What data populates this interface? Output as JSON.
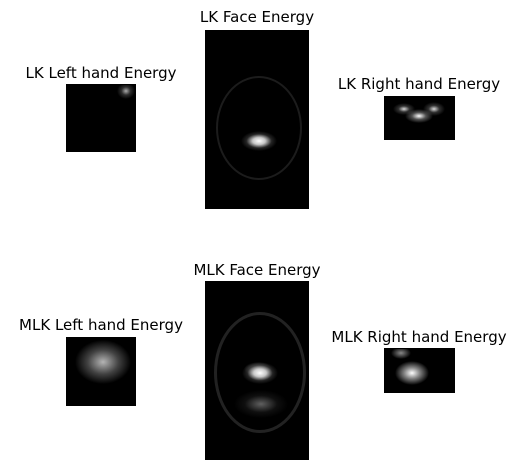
{
  "figure": {
    "panels": [
      {
        "id": "lk-left-hand",
        "title": "LK Left hand Energy"
      },
      {
        "id": "lk-face",
        "title": "LK Face Energy"
      },
      {
        "id": "lk-right-hand",
        "title": "LK Right hand Energy"
      },
      {
        "id": "mlk-left-hand",
        "title": "MLK Left hand Energy"
      },
      {
        "id": "mlk-face",
        "title": "MLK Face Energy"
      },
      {
        "id": "mlk-right-hand",
        "title": "MLK Right hand Energy"
      }
    ],
    "colormap": "grayscale",
    "axes_visible": false
  }
}
